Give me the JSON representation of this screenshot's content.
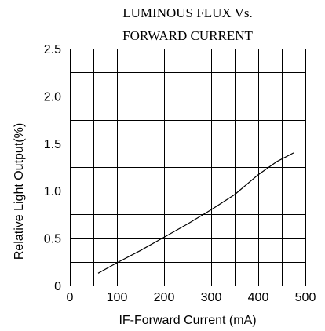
{
  "chart_data": {
    "type": "line",
    "title_lines": [
      "LUMINOUS FLUX Vs.",
      "FORWARD CURRENT"
    ],
    "xlabel": "IF-Forward Current (mA)",
    "ylabel": "Relative Light Output(%)",
    "xlim": [
      0,
      500
    ],
    "ylim": [
      0,
      2.5
    ],
    "x_ticks": [
      0,
      100,
      200,
      300,
      400,
      500
    ],
    "x_tick_labels": [
      "0",
      "100",
      "200",
      "300",
      "400",
      "500"
    ],
    "y_ticks": [
      0,
      0.5,
      1.0,
      1.5,
      2.0,
      2.5
    ],
    "y_tick_labels": [
      "0",
      "0.5",
      "1.0",
      "1.5",
      "2.0",
      "2.5"
    ],
    "grid": true,
    "grid_x_step": 50,
    "grid_y_step": 0.25,
    "series": [
      {
        "x": [
          60,
          100,
          150,
          200,
          250,
          300,
          350,
          400,
          440,
          475
        ],
        "y": [
          0.13,
          0.24,
          0.37,
          0.51,
          0.65,
          0.8,
          0.96,
          1.17,
          1.31,
          1.4
        ]
      }
    ]
  }
}
